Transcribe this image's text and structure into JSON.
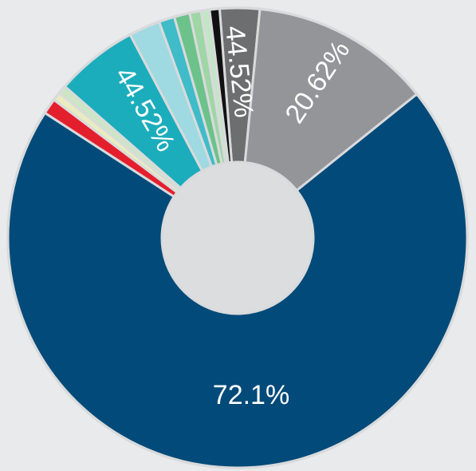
{
  "chart_data": {
    "type": "donut",
    "values": [
      2.8,
      12.7,
      69.9,
      1.1,
      0.6,
      0.6,
      5.8,
      2.2,
      1.1,
      1.1,
      0.8,
      0.6,
      0.7
    ],
    "colors": [
      "#6d6e70",
      "#939598",
      "#024a79",
      "#e41f2d",
      "#e8ecc0",
      "#cce6c4",
      "#1cadbc",
      "#9fd9e1",
      "#3fbcc8",
      "#6cc28a",
      "#9fd6a6",
      "#c3e6c6",
      "#111111"
    ],
    "annotations": [
      "44.52%",
      "20.62%",
      "72.1%",
      "44.52%"
    ]
  }
}
